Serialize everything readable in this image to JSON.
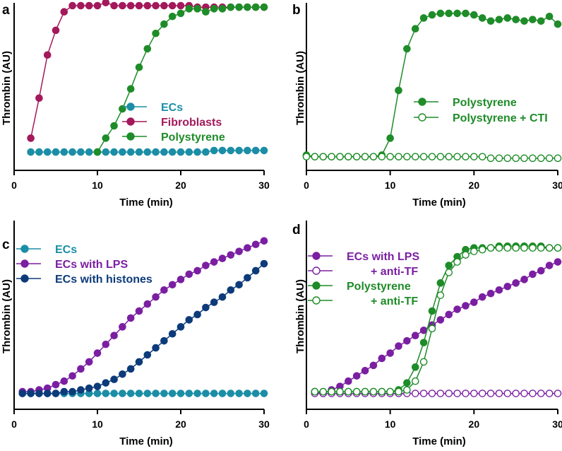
{
  "chart_data": [
    {
      "panel": "a",
      "type": "line",
      "xlabel": "Time (min)",
      "ylabel": "Thrombin (AU)",
      "xlim": [
        0,
        30
      ],
      "ylim": [
        0,
        100
      ],
      "xticks": [
        0,
        10,
        20,
        30
      ],
      "legend_position": "center-right",
      "series": [
        {
          "name": "ECs",
          "color": "#1b8ea6",
          "filled": true,
          "x": [
            2,
            3,
            4,
            5,
            6,
            7,
            8,
            9,
            10,
            11,
            12,
            13,
            14,
            15,
            16,
            17,
            18,
            19,
            20,
            21,
            22,
            23,
            24,
            25,
            26,
            27,
            28,
            29,
            30
          ],
          "y": [
            5,
            5,
            5,
            5,
            5,
            5,
            5,
            5,
            5,
            5,
            5,
            5,
            5,
            5,
            5,
            5,
            5,
            5,
            5,
            5,
            5,
            5,
            6,
            6,
            6,
            6,
            6,
            6,
            6
          ]
        },
        {
          "name": "Fibroblasts",
          "color": "#a3195b",
          "filled": true,
          "x": [
            2,
            3,
            4,
            5,
            6,
            7,
            8,
            9,
            10,
            11,
            12,
            13,
            14,
            15,
            16,
            17,
            18,
            19,
            20,
            21,
            22,
            23,
            24,
            25,
            26,
            27,
            28,
            29,
            30
          ],
          "y": [
            14,
            40,
            68,
            84,
            96,
            100,
            100,
            100,
            100,
            102,
            100,
            100,
            100,
            100,
            100,
            100,
            100,
            100,
            100,
            100,
            99,
            99,
            99,
            99,
            99,
            99,
            99,
            99,
            99
          ]
        },
        {
          "name": "Polystyrene",
          "color": "#1e8c28",
          "filled": true,
          "x": [
            10,
            11,
            12,
            13,
            14,
            15,
            16,
            17,
            18,
            19,
            20,
            21,
            22,
            23,
            24,
            25,
            26,
            27,
            28,
            29,
            30
          ],
          "y": [
            5,
            14,
            22,
            33,
            46,
            60,
            72,
            82,
            88,
            93,
            95,
            98,
            98,
            96,
            98,
            98,
            99,
            99,
            99,
            99,
            99
          ]
        }
      ]
    },
    {
      "panel": "b",
      "type": "line",
      "xlabel": "Time (min)",
      "ylabel": "Thrombin (AU)",
      "xlim": [
        0,
        30
      ],
      "ylim": [
        0,
        100
      ],
      "xticks": [
        0,
        10,
        20,
        30
      ],
      "legend_position": "lower-right",
      "series": [
        {
          "name": "Polystyrene",
          "color": "#1e8c28",
          "filled": true,
          "x": [
            0,
            1,
            2,
            3,
            4,
            5,
            6,
            7,
            8,
            9,
            10,
            11,
            12,
            13,
            14,
            15,
            16,
            17,
            18,
            19,
            20,
            21,
            22,
            23,
            24,
            25,
            26,
            27,
            28,
            29,
            30
          ],
          "y": [
            3,
            2,
            2,
            2,
            2,
            2,
            2,
            2,
            2,
            3,
            14,
            45,
            72,
            85,
            92,
            94,
            95,
            95,
            95,
            95,
            94,
            92,
            90,
            91,
            92,
            91,
            90,
            91,
            90,
            93,
            88
          ]
        },
        {
          "name": "Polystyrene + CTI",
          "color": "#1e8c28",
          "filled": false,
          "x": [
            0,
            1,
            2,
            3,
            4,
            5,
            6,
            7,
            8,
            9,
            10,
            11,
            12,
            13,
            14,
            15,
            16,
            17,
            18,
            19,
            20,
            21,
            22,
            23,
            24,
            25,
            26,
            27,
            28,
            29,
            30
          ],
          "y": [
            2,
            2,
            2,
            2,
            2,
            2,
            2,
            2,
            2,
            2,
            2,
            2,
            2,
            2,
            2,
            2,
            2,
            2,
            2,
            2,
            2,
            2,
            1,
            1,
            1,
            1,
            1,
            1,
            1,
            1,
            1
          ]
        }
      ]
    },
    {
      "panel": "c",
      "type": "line",
      "xlabel": "Time (min)",
      "ylabel": "Thrombin (AU)",
      "xlim": [
        0,
        30
      ],
      "ylim": [
        0,
        100
      ],
      "xticks": [
        0,
        10,
        20,
        30
      ],
      "legend_position": "top-left",
      "series": [
        {
          "name": "ECs",
          "color": "#1b8ea6",
          "filled": true,
          "x": [
            1,
            2,
            3,
            4,
            5,
            6,
            7,
            8,
            9,
            10,
            11,
            12,
            13,
            14,
            15,
            16,
            17,
            18,
            19,
            20,
            21,
            22,
            23,
            24,
            25,
            26,
            27,
            28,
            29,
            30
          ],
          "y": [
            3,
            3,
            3,
            3,
            3,
            3,
            3,
            3,
            3,
            3,
            3,
            3,
            3,
            3,
            3,
            3,
            3,
            3,
            3,
            3,
            3,
            3,
            3,
            3,
            3,
            3,
            3,
            3,
            3,
            3
          ]
        },
        {
          "name": "ECs with LPS",
          "color": "#7b1fa2",
          "filled": true,
          "x": [
            1,
            2,
            3,
            4,
            5,
            6,
            7,
            8,
            9,
            10,
            11,
            12,
            13,
            14,
            15,
            16,
            17,
            18,
            19,
            20,
            21,
            22,
            23,
            24,
            25,
            26,
            27,
            28,
            29,
            30
          ],
          "y": [
            4,
            4,
            5,
            6,
            8,
            10,
            13,
            17,
            21,
            26,
            31,
            36,
            41,
            46,
            50,
            54,
            58,
            62,
            65,
            68,
            71,
            73,
            76,
            78,
            80,
            82,
            84,
            86,
            88,
            90
          ]
        },
        {
          "name": "ECs with histones",
          "color": "#0d3b7a",
          "filled": true,
          "x": [
            1,
            2,
            3,
            4,
            5,
            6,
            7,
            8,
            9,
            10,
            11,
            12,
            13,
            14,
            15,
            16,
            17,
            18,
            19,
            20,
            21,
            22,
            23,
            24,
            25,
            26,
            27,
            28,
            29,
            30
          ],
          "y": [
            3,
            3,
            3,
            3,
            3,
            4,
            4,
            5,
            6,
            7,
            9,
            11,
            14,
            17,
            21,
            25,
            29,
            33,
            37,
            41,
            45,
            48,
            52,
            55,
            58,
            62,
            65,
            69,
            73,
            77
          ]
        }
      ]
    },
    {
      "panel": "d",
      "type": "line",
      "xlabel": "Time (min)",
      "ylabel": "Thrombin (AU)",
      "xlim": [
        0,
        30
      ],
      "ylim": [
        0,
        100
      ],
      "xticks": [
        0,
        10,
        20,
        30
      ],
      "legend_position": "top-left",
      "series": [
        {
          "name": "ECs with LPS",
          "color": "#7b1fa2",
          "filled": true,
          "x": [
            1,
            2,
            3,
            4,
            5,
            6,
            7,
            8,
            9,
            10,
            11,
            12,
            13,
            14,
            15,
            16,
            17,
            18,
            19,
            20,
            21,
            22,
            23,
            24,
            25,
            26,
            27,
            28,
            29,
            30
          ],
          "y": [
            4,
            3,
            5,
            7,
            10,
            13,
            16,
            19,
            23,
            26,
            30,
            33,
            36,
            39,
            42,
            45,
            48,
            51,
            53,
            55,
            58,
            60,
            62,
            64,
            66,
            68,
            71,
            73,
            76,
            78
          ]
        },
        {
          "name": "+ anti-TF",
          "color": "#7b1fa2",
          "filled": false,
          "x": [
            1,
            2,
            3,
            4,
            5,
            6,
            7,
            8,
            9,
            10,
            11,
            12,
            13,
            14,
            15,
            16,
            17,
            18,
            19,
            20,
            21,
            22,
            23,
            24,
            25,
            26,
            27,
            28,
            29,
            30
          ],
          "y": [
            3,
            3,
            3,
            3,
            3,
            3,
            3,
            3,
            3,
            3,
            3,
            3,
            3,
            3,
            3,
            3,
            3,
            3,
            3,
            3,
            3,
            3,
            3,
            3,
            3,
            3,
            3,
            3,
            3,
            3
          ]
        },
        {
          "name": "Polystyrene",
          "color": "#1e8c28",
          "filled": true,
          "x": [
            1,
            2,
            3,
            4,
            5,
            6,
            7,
            8,
            9,
            10,
            11,
            12,
            13,
            14,
            15,
            16,
            17,
            18,
            19,
            20,
            21,
            22,
            23,
            24,
            25,
            26,
            27,
            28,
            29,
            30
          ],
          "y": [
            4,
            4,
            4,
            4,
            4,
            4,
            4,
            4,
            4,
            4,
            5,
            9,
            18,
            32,
            50,
            66,
            76,
            81,
            85,
            86,
            86,
            86,
            87,
            87,
            87,
            87,
            87,
            87,
            86,
            86
          ]
        },
        {
          "name": "+ anti-TF",
          "color": "#1e8c28",
          "filled": false,
          "x": [
            1,
            2,
            3,
            4,
            5,
            6,
            7,
            8,
            9,
            10,
            11,
            12,
            13,
            14,
            15,
            16,
            17,
            18,
            19,
            20,
            21,
            22,
            23,
            24,
            25,
            26,
            27,
            28,
            29,
            30
          ],
          "y": [
            4,
            4,
            4,
            4,
            4,
            4,
            4,
            4,
            4,
            4,
            4,
            5,
            10,
            21,
            40,
            59,
            72,
            78,
            82,
            84,
            85,
            86,
            86,
            86,
            86,
            86,
            86,
            86,
            86,
            86
          ]
        }
      ]
    }
  ]
}
